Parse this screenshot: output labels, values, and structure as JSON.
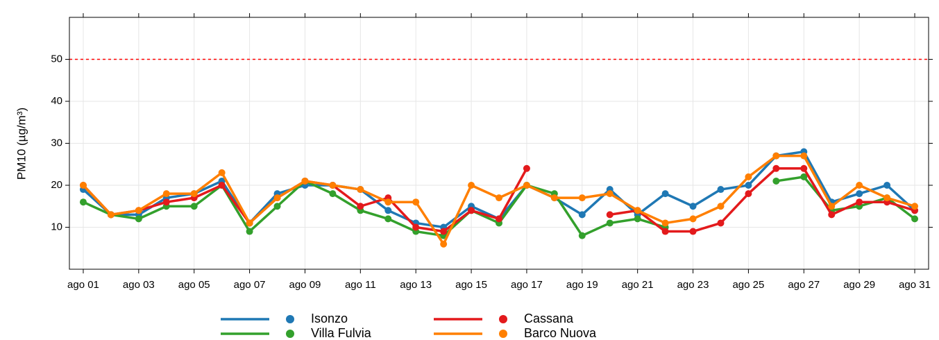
{
  "chart_data": {
    "type": "line",
    "y_label": "PM10 (µg/m³)",
    "categories": [
      "ago 01",
      null,
      "ago 03",
      null,
      "ago 05",
      null,
      "ago 07",
      null,
      "ago 09",
      null,
      "ago 11",
      null,
      "ago 13",
      null,
      "ago 15",
      null,
      "ago 17",
      null,
      "ago 19",
      null,
      "ago 21",
      null,
      "ago 23",
      null,
      "ago 25",
      null,
      "ago 27",
      null,
      "ago 29",
      null,
      "ago 31"
    ],
    "ylim": [
      0,
      60
    ],
    "yticks": [
      10,
      20,
      30,
      40,
      50
    ],
    "grid": true,
    "hline": 50,
    "hline_color": "#ff0000",
    "legend": "bottom",
    "series": [
      {
        "name": "Isonzo",
        "color": "#1f78b4",
        "values": [
          19,
          13,
          13,
          17,
          18,
          21,
          11,
          18,
          20,
          20,
          19,
          14,
          11,
          10,
          15,
          12,
          20,
          17,
          13,
          19,
          13,
          18,
          15,
          19,
          20,
          27,
          28,
          16,
          18,
          20,
          14
        ]
      },
      {
        "name": "Villa Fulvia",
        "color": "#33a02c",
        "values": [
          16,
          13,
          12,
          15,
          15,
          20,
          9,
          15,
          21,
          18,
          14,
          12,
          9,
          8,
          14,
          11,
          20,
          18,
          8,
          11,
          12,
          10,
          null,
          null,
          null,
          21,
          22,
          14,
          15,
          17,
          12
        ]
      },
      {
        "name": "Cassana",
        "color": "#e31a1c",
        "values": [
          20,
          13,
          14,
          16,
          17,
          20,
          11,
          17,
          21,
          20,
          15,
          17,
          10,
          9,
          14,
          12,
          24,
          null,
          null,
          13,
          14,
          9,
          9,
          11,
          18,
          24,
          24,
          13,
          16,
          16,
          14
        ]
      },
      {
        "name": "Barco Nuova",
        "color": "#ff7f00",
        "values": [
          20,
          13,
          14,
          18,
          18,
          23,
          11,
          17,
          21,
          20,
          19,
          16,
          16,
          6,
          20,
          17,
          20,
          17,
          17,
          18,
          14,
          11,
          12,
          15,
          22,
          27,
          27,
          15,
          20,
          17,
          15
        ]
      }
    ]
  }
}
